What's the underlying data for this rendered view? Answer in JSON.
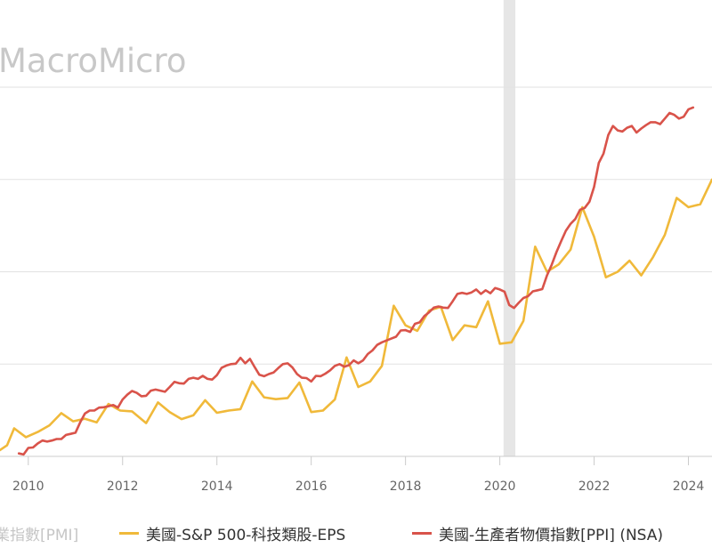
{
  "watermark": "MacroMicro",
  "legend": [
    {
      "label": "業指數[PMI]",
      "color": "",
      "faded": true
    },
    {
      "label": "美國-S&P 500-科技類股-EPS",
      "color": "#f0b93a",
      "faded": false
    },
    {
      "label": "美國-生產者物價指數[PPI] (NSA)",
      "color": "#d9534a",
      "faded": false
    }
  ],
  "chart_data": {
    "type": "line",
    "xlabel": "",
    "ylabel": "",
    "x_ticks": [
      "2010",
      "2012",
      "2014",
      "2016",
      "2018",
      "2020",
      "2022",
      "2024"
    ],
    "xlim": [
      2009.4,
      2024.5
    ],
    "ylim": [
      0,
      100
    ],
    "recession_band": [
      2020.08,
      2020.33
    ],
    "grid": "horizontal",
    "legend_position": "bottom",
    "series": [
      {
        "name": "美國-S&P 500-科技類股-EPS",
        "color": "#f0b93a",
        "x": [
          2009.4,
          2009.55,
          2009.7,
          2009.95,
          2010.2,
          2010.45,
          2010.7,
          2010.95,
          2011.2,
          2011.45,
          2011.7,
          2011.95,
          2012.2,
          2012.5,
          2012.75,
          2013.0,
          2013.25,
          2013.5,
          2013.75,
          2014.0,
          2014.25,
          2014.5,
          2014.75,
          2015.0,
          2015.25,
          2015.5,
          2015.75,
          2016.0,
          2016.25,
          2016.5,
          2016.75,
          2017.0,
          2017.25,
          2017.5,
          2017.75,
          2018.0,
          2018.25,
          2018.5,
          2018.75,
          2019.0,
          2019.25,
          2019.5,
          2019.75,
          2020.0,
          2020.25,
          2020.5,
          2020.75,
          2021.0,
          2021.25,
          2021.5,
          2021.75,
          2022.0,
          2022.25,
          2022.5,
          2022.75,
          2023.0,
          2023.25,
          2023.5,
          2023.75,
          2024.0,
          2024.25,
          2024.5
        ],
        "y": [
          1.7,
          3.0,
          7.6,
          5.2,
          6.6,
          8.4,
          11.7,
          9.5,
          10.2,
          9.2,
          14.2,
          12.4,
          12.2,
          9.0,
          14.6,
          12.0,
          10.1,
          11.1,
          15.2,
          11.8,
          12.4,
          12.8,
          20.3,
          16.0,
          15.5,
          15.8,
          20.0,
          12.0,
          12.4,
          15.4,
          26.8,
          18.8,
          20.3,
          24.5,
          40.8,
          35.5,
          34.0,
          39.5,
          40.5,
          31.5,
          35.5,
          35.0,
          42.0,
          30.5,
          30.9,
          36.7,
          56.8,
          50.0,
          52.0,
          56.0,
          67.5,
          59.5,
          48.5,
          50.0,
          53.0,
          49.0,
          54.0,
          60.0,
          70.0,
          67.5,
          68.3,
          75.0
        ]
      },
      {
        "name": "美國-生產者物價指數[PPI] (NSA)",
        "color": "#d9534a",
        "x": [
          2009.8,
          2009.9,
          2010.0,
          2010.1,
          2010.2,
          2010.3,
          2010.4,
          2010.5,
          2010.6,
          2010.7,
          2010.8,
          2010.9,
          2011.0,
          2011.1,
          2011.2,
          2011.3,
          2011.4,
          2011.5,
          2011.6,
          2011.7,
          2011.8,
          2011.9,
          2012.0,
          2012.1,
          2012.2,
          2012.3,
          2012.4,
          2012.5,
          2012.6,
          2012.7,
          2012.8,
          2012.9,
          2013.0,
          2013.1,
          2013.2,
          2013.3,
          2013.4,
          2013.5,
          2013.6,
          2013.7,
          2013.8,
          2013.9,
          2014.0,
          2014.1,
          2014.2,
          2014.3,
          2014.4,
          2014.5,
          2014.6,
          2014.7,
          2014.8,
          2014.9,
          2015.0,
          2015.1,
          2015.2,
          2015.3,
          2015.4,
          2015.5,
          2015.6,
          2015.7,
          2015.8,
          2015.9,
          2016.0,
          2016.1,
          2016.2,
          2016.3,
          2016.4,
          2016.5,
          2016.6,
          2016.7,
          2016.8,
          2016.9,
          2017.0,
          2017.1,
          2017.2,
          2017.3,
          2017.4,
          2017.5,
          2017.6,
          2017.7,
          2017.8,
          2017.9,
          2018.0,
          2018.1,
          2018.2,
          2018.3,
          2018.4,
          2018.5,
          2018.6,
          2018.7,
          2018.8,
          2018.9,
          2019.0,
          2019.1,
          2019.2,
          2019.3,
          2019.4,
          2019.5,
          2019.6,
          2019.7,
          2019.8,
          2019.9,
          2020.0,
          2020.1,
          2020.2,
          2020.3,
          2020.4,
          2020.5,
          2020.6,
          2020.7,
          2020.8,
          2020.9,
          2021.0,
          2021.1,
          2021.2,
          2021.3,
          2021.4,
          2021.5,
          2021.6,
          2021.7,
          2021.8,
          2021.9,
          2022.0,
          2022.1,
          2022.2,
          2022.3,
          2022.4,
          2022.5,
          2022.6,
          2022.7,
          2022.8,
          2022.9,
          2023.0,
          2023.1,
          2023.2,
          2023.3,
          2023.4,
          2023.5,
          2023.6,
          2023.7,
          2023.8,
          2023.9,
          2024.0,
          2024.1
        ],
        "y": [
          0.8,
          0.5,
          2.3,
          2.4,
          3.5,
          4.3,
          4.0,
          4.3,
          4.7,
          4.7,
          5.8,
          6.1,
          6.4,
          9.2,
          11.6,
          12.4,
          12.4,
          13.2,
          13.3,
          13.6,
          13.9,
          13.2,
          15.4,
          16.7,
          17.7,
          17.2,
          16.3,
          16.4,
          17.8,
          18.1,
          17.8,
          17.5,
          18.8,
          20.2,
          19.8,
          19.7,
          21.0,
          21.3,
          21.0,
          21.8,
          21.0,
          20.8,
          22.0,
          24.0,
          24.6,
          25.0,
          25.1,
          26.7,
          25.2,
          26.4,
          24.2,
          22.1,
          21.7,
          22.3,
          22.7,
          23.9,
          25.0,
          25.2,
          24.1,
          22.3,
          21.3,
          21.2,
          20.3,
          21.8,
          21.7,
          22.4,
          23.3,
          24.5,
          25.0,
          24.3,
          24.7,
          26.0,
          25.2,
          26.0,
          27.7,
          28.7,
          30.2,
          30.9,
          31.4,
          31.9,
          32.4,
          34.1,
          34.2,
          33.7,
          35.9,
          36.3,
          38.0,
          39.0,
          40.3,
          40.6,
          40.3,
          40.2,
          42.0,
          44.0,
          44.3,
          44.0,
          44.4,
          45.2,
          44.0,
          45.0,
          44.2,
          45.6,
          45.2,
          44.6,
          41.0,
          40.2,
          41.6,
          42.9,
          43.4,
          44.7,
          45.0,
          45.3,
          49.0,
          51.9,
          55.3,
          58.3,
          61.1,
          63.0,
          64.3,
          66.8,
          67.3,
          69.0,
          73.0,
          79.5,
          82.0,
          87.0,
          89.5,
          88.3,
          88.0,
          89.0,
          89.5,
          87.7,
          88.8,
          89.7,
          90.5,
          90.5,
          90.0,
          91.5,
          93.0,
          92.5,
          91.5,
          92.0,
          94.0,
          94.5
        ]
      }
    ]
  }
}
